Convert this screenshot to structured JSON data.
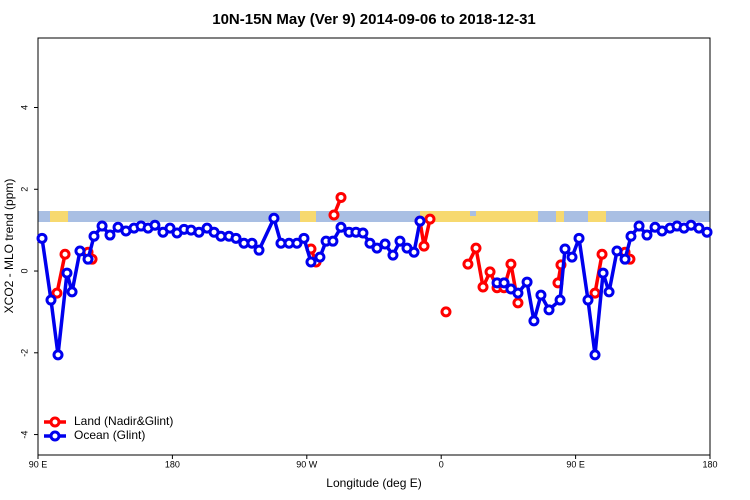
{
  "chart_data": {
    "type": "line",
    "title": "10N-15N May (Ver 9)   2014-09-06 to 2018-12-31",
    "xlabel": "Longitude (deg E)",
    "ylabel": "XCO2 - MLO trend (ppm)",
    "xlim": [
      90,
      540
    ],
    "xticks": [
      {
        "value": 90,
        "label": "90 E"
      },
      {
        "value": 180,
        "label": "180"
      },
      {
        "value": 270,
        "label": "90 W"
      },
      {
        "value": 360,
        "label": "0"
      },
      {
        "value": 450,
        "label": "90 E"
      },
      {
        "value": 540,
        "label": "180"
      }
    ],
    "ylim": [
      -4.5,
      5.7
    ],
    "yticks": [
      -4,
      -2,
      0,
      2,
      4
    ],
    "legend": "bottom-left",
    "series": [
      {
        "name": "Land (Nadir&Glint)",
        "color": "#ff0000",
        "x": [
          102.7,
          108.1,
          115,
          123.5,
          126.2,
          200,
          272.8,
          276.2,
          280,
          288.2,
          292.9,
          320,
          345.8,
          348.5,
          352.5,
          358,
          363.2,
          370,
          377.9,
          383.3,
          388.0,
          392.7,
          397.4,
          402.1,
          406.7,
          411.4,
          420,
          438.2,
          440.2,
          450,
          463.0,
          467.7,
          475,
          483.1,
          486.4
        ],
        "values": [
          -0.54,
          0.41,
          null,
          0.46,
          0.29,
          null,
          0.54,
          0.22,
          null,
          1.37,
          1.8,
          null,
          1.22,
          0.61,
          1.27,
          null,
          -1.0,
          null,
          0.17,
          0.56,
          -0.39,
          -0.02,
          -0.41,
          -0.41,
          0.17,
          -0.78,
          null,
          -0.29,
          0.15,
          null,
          -0.54,
          0.41,
          null,
          0.46,
          0.29
        ]
      },
      {
        "name": "Ocean (Glint)",
        "color": "#0000ee",
        "x": [
          92.7,
          98.7,
          103.4,
          109.4,
          112.8,
          118.1,
          123.5,
          127.5,
          132.9,
          138.2,
          143.6,
          148.9,
          154.3,
          159.0,
          163.7,
          168.3,
          173.7,
          178.4,
          183.1,
          187.8,
          192.5,
          197.8,
          203.2,
          207.9,
          212.5,
          217.9,
          222.6,
          227.9,
          233.3,
          238.0,
          248.0,
          252.7,
          258.1,
          263.4,
          268.1,
          272.8,
          278.8,
          282.9,
          287.5,
          292.9,
          298.3,
          302.9,
          307.6,
          312.3,
          317.0,
          322.4,
          327.7,
          332.4,
          337.1,
          341.8,
          345.8,
          370,
          397.4,
          402.1,
          406.7,
          411.4,
          417.5,
          422.1,
          426.8,
          432.2,
          439.6,
          442.9,
          447.6,
          452.3,
          458.3,
          463.0,
          468.4,
          472.4,
          477.7,
          483.1,
          487.1,
          492.5,
          497.8,
          503.2,
          507.9,
          513.2,
          517.9,
          522.6,
          527.3,
          532.6,
          538.0
        ],
        "values": [
          0.8,
          -0.71,
          -2.05,
          -0.05,
          -0.51,
          0.49,
          0.29,
          0.85,
          1.1,
          0.88,
          1.07,
          0.98,
          1.05,
          1.1,
          1.05,
          1.12,
          0.95,
          1.05,
          0.93,
          1.02,
          1.0,
          0.95,
          1.05,
          0.95,
          0.85,
          0.85,
          0.8,
          0.68,
          0.68,
          0.51,
          1.29,
          0.68,
          0.68,
          0.68,
          0.8,
          0.22,
          0.34,
          0.73,
          0.73,
          1.07,
          0.95,
          0.95,
          0.93,
          0.68,
          0.56,
          0.66,
          0.39,
          0.73,
          0.56,
          0.46,
          1.22,
          null,
          -0.29,
          -0.29,
          -0.44,
          -0.54,
          -0.27,
          -1.22,
          -0.59,
          -0.95,
          -0.71,
          0.54,
          0.34,
          0.8,
          -0.71,
          -2.05,
          -0.05,
          -0.51,
          0.49,
          0.29,
          0.85,
          1.1,
          0.88,
          1.07,
          0.98,
          1.05,
          1.1,
          1.05,
          1.12,
          1.05,
          0.95
        ]
      }
    ]
  }
}
